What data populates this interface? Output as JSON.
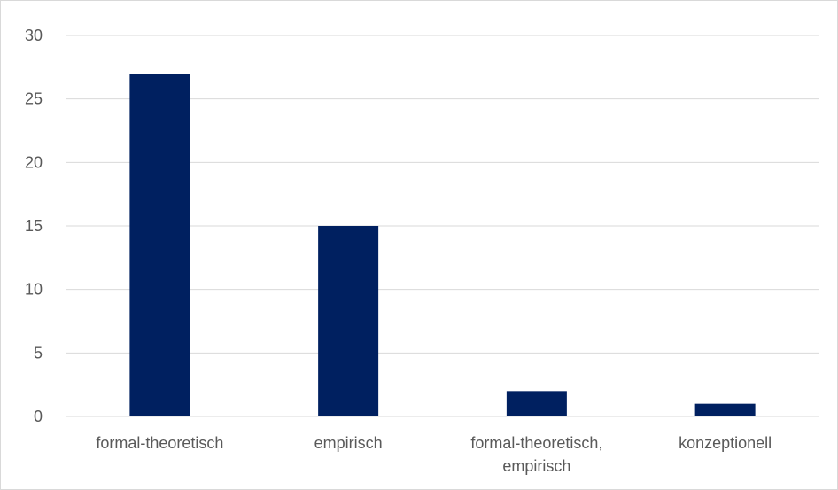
{
  "chart_data": {
    "type": "bar",
    "categories": [
      [
        "formal-theoretisch"
      ],
      [
        "empirisch"
      ],
      [
        "formal-theoretisch,",
        "empirisch"
      ],
      [
        "konzeptionell"
      ]
    ],
    "values": [
      27,
      15,
      2,
      1
    ],
    "ylim": [
      0,
      30
    ],
    "yticks": [
      0,
      5,
      10,
      15,
      20,
      25,
      30
    ],
    "grid": true,
    "legend": "none",
    "title": "",
    "xlabel": "",
    "ylabel": "",
    "colors": {
      "bar": "#002060",
      "grid": "#d9d9d9",
      "text": "#595959"
    }
  }
}
